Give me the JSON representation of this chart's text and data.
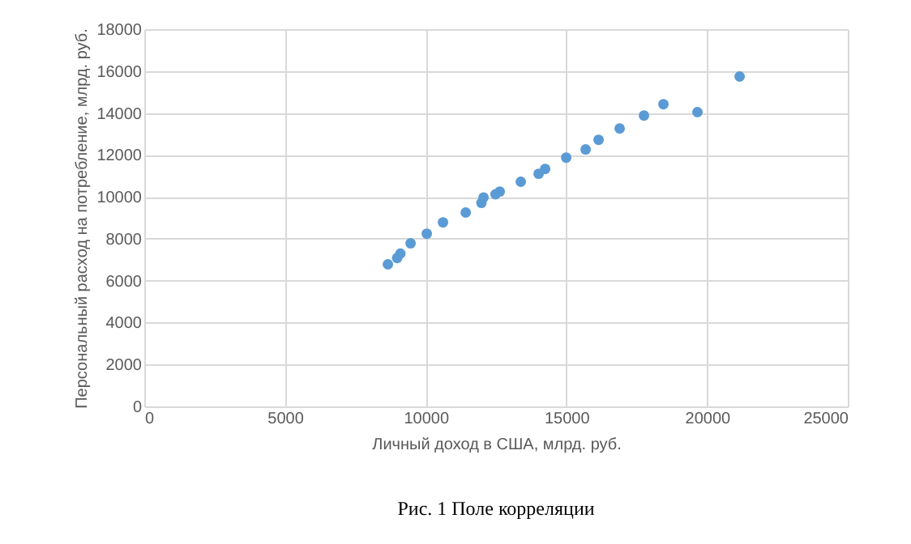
{
  "chart_data": {
    "type": "scatter",
    "xlabel": "Личный доход в США, млрд. руб.",
    "ylabel": "Персональный расход на потребление, млрд. руб.",
    "annotations": [
      "Рис. 1 Поле корреляции"
    ],
    "x": [
      8657,
      8986,
      9101,
      9464,
      10040,
      10616,
      11423,
      11981,
      12056,
      12482,
      12632,
      13380,
      14014,
      14245,
      14994,
      15685,
      16145,
      16894,
      17758,
      18449,
      19658,
      21157
    ],
    "series": [
      {
        "color": "#5b9bd5",
        "values": [
          6780,
          7080,
          7290,
          7780,
          8240,
          8780,
          9250,
          9710,
          9970,
          10120,
          10250,
          10720,
          11100,
          11330,
          11870,
          12260,
          12720,
          13260,
          13880,
          14420,
          14040,
          15740
        ]
      }
    ],
    "xlim": [
      0,
      25000
    ],
    "xticks": [
      0,
      5000,
      10000,
      15000,
      20000,
      25000
    ],
    "ylim": [
      0,
      18000
    ],
    "yticks": [
      0,
      2000,
      4000,
      6000,
      8000,
      10000,
      12000,
      14000,
      16000,
      18000
    ],
    "grid": true
  }
}
